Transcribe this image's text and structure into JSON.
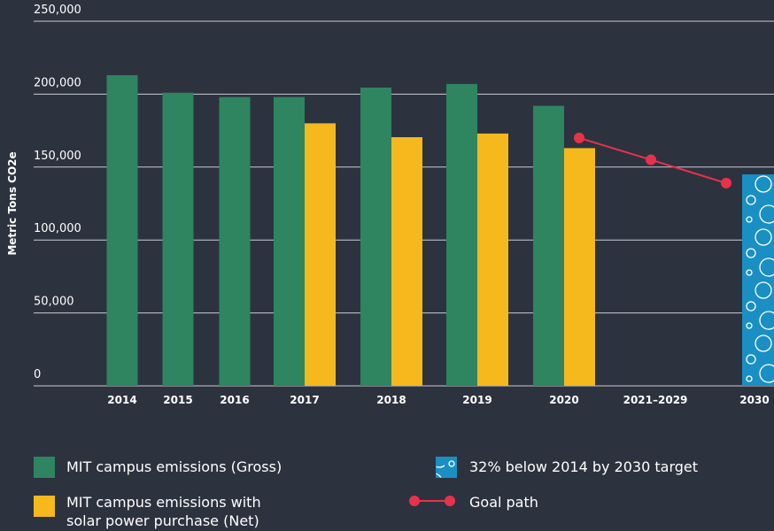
{
  "chart_data": {
    "type": "bar",
    "y_label": "Metric Tons CO2e",
    "categories": [
      "2014",
      "2015",
      "2016",
      "2017",
      "2018",
      "2019",
      "2020",
      "2021–2029",
      "2030"
    ],
    "series": [
      {
        "name": "MIT campus emissions (Gross)",
        "color": "#2e8560",
        "values": [
          213000,
          201000,
          198000,
          198000,
          204500,
          207000,
          192000,
          null,
          null
        ]
      },
      {
        "name": "MIT campus emissions with solar power purchase (Net)",
        "color": "#f5b91e",
        "values": [
          null,
          null,
          null,
          180000,
          170500,
          173000,
          163000,
          null,
          null
        ]
      },
      {
        "name": "32% below 2014 by 2030 target",
        "color": "#1a8fc4",
        "values": [
          null,
          null,
          null,
          null,
          null,
          null,
          null,
          null,
          145000
        ]
      },
      {
        "name": "Goal path",
        "color": "#e8324a",
        "type": "line",
        "values": [
          null,
          null,
          null,
          null,
          null,
          null,
          170000,
          155000,
          139000
        ]
      }
    ],
    "ylim": [
      0,
      250000
    ],
    "yticks": [
      0,
      {
        "value": 50000,
        "label": "50,000"
      },
      {
        "value": 100000,
        "label": "100,000"
      },
      {
        "value": 150000,
        "label": "150,000"
      },
      {
        "value": 200000,
        "label": "200,000"
      },
      {
        "value": 250000,
        "label": "250,000"
      }
    ],
    "grid": true
  }
}
